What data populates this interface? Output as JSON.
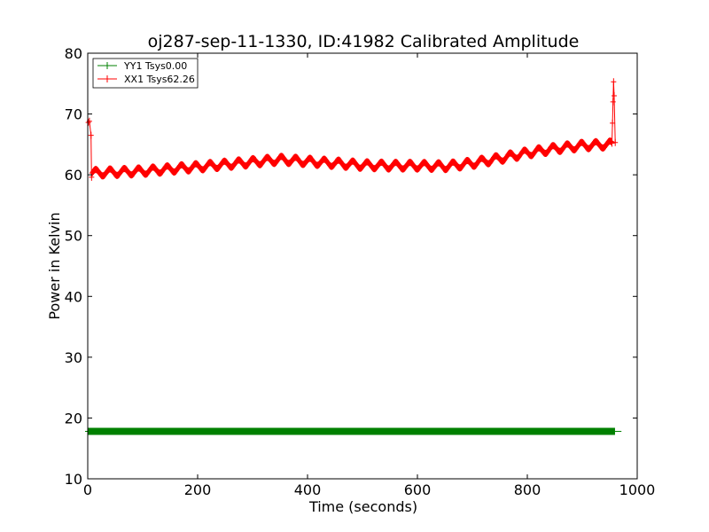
{
  "chart_data": {
    "type": "line",
    "title": "oj287-sep-11-1330, ID:41982 Calibrated Amplitude",
    "xlabel": "Time (seconds)",
    "ylabel": "Power in Kelvin",
    "xlim": [
      0,
      1000
    ],
    "ylim": [
      10,
      80
    ],
    "xticks": [
      0,
      200,
      400,
      600,
      800,
      1000
    ],
    "yticks": [
      10,
      20,
      30,
      40,
      50,
      60,
      70,
      80
    ],
    "grid": false,
    "legend_position": "top-left",
    "series": [
      {
        "name": "YY1 Tsys0.00",
        "color": "#008000",
        "marker": "+",
        "x_range": [
          0,
          960
        ],
        "level": 17.8,
        "ripple": 0
      },
      {
        "name": "XX1 Tsys62.26",
        "color": "#ff0000",
        "marker": "+",
        "start_spike": [
          [
            1,
            68.6
          ],
          [
            3,
            68.8
          ],
          [
            6,
            66.5
          ],
          [
            7,
            59.6
          ]
        ],
        "end_spike": [
          [
            954,
            65.2
          ],
          [
            955,
            68.5
          ],
          [
            956,
            72.0
          ],
          [
            957,
            75.3
          ],
          [
            958,
            73.0
          ],
          [
            960,
            65.3
          ]
        ],
        "baseline": [
          [
            7,
            60.3
          ],
          [
            100,
            60.6
          ],
          [
            200,
            61.3
          ],
          [
            300,
            62.1
          ],
          [
            350,
            62.5
          ],
          [
            400,
            62.2
          ],
          [
            450,
            61.9
          ],
          [
            500,
            61.6
          ],
          [
            550,
            61.5
          ],
          [
            600,
            61.5
          ],
          [
            650,
            61.4
          ],
          [
            700,
            61.9
          ],
          [
            750,
            62.7
          ],
          [
            800,
            63.6
          ],
          [
            850,
            64.3
          ],
          [
            900,
            64.8
          ],
          [
            950,
            65.0
          ]
        ],
        "ripple": 0.55,
        "ripple_period": 26
      }
    ]
  }
}
